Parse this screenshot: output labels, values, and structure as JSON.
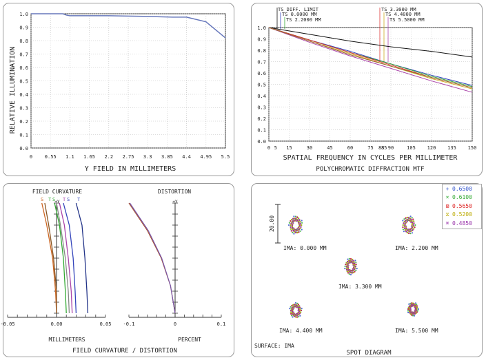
{
  "relative_illumination": {
    "xlabel": "Y FIELD IN MILLIMETERS",
    "ylabel": "RELATIVE ILLUMINATION"
  },
  "mtf": {
    "xlabel": "SPATIAL FREQUENCY IN CYCLES PER MILLIMETER",
    "caption": "POLYCHROMATIC DIFFRACTION MTF",
    "labels_left": [
      "TS DIFF. LIMIT",
      "TS 0.0000 MM",
      "TS 2.2000 MM"
    ],
    "labels_right": [
      "TS 3.3000 MM",
      "TS 4.4000 MM",
      "TS 5.5000 MM"
    ]
  },
  "field_curvature": {
    "title_left": "FIELD CURVATURE",
    "title_right": "DISTORTION",
    "caption": "FIELD CURVATURE / DISTORTION",
    "xlabel_left": "MILLIMETERS",
    "xlabel_right": "PERCENT",
    "axis_top_label": "+Y",
    "st_labels": [
      "S",
      "T",
      "S",
      "T",
      "S",
      "T"
    ]
  },
  "spot": {
    "caption": "SPOT DIAGRAM",
    "scale_label": "20.00",
    "surface": "SURFACE: IMA",
    "ima_labels": [
      "IMA: 0.000 MM",
      "IMA: 2.200 MM",
      "IMA: 3.300 MM",
      "IMA: 4.400 MM",
      "IMA: 5.500 MM"
    ],
    "legend": [
      {
        "symbol": "+",
        "value": "0.6500",
        "color": "#3355cc"
      },
      {
        "symbol": "×",
        "value": "0.6100",
        "color": "#33aa33"
      },
      {
        "symbol": "⊠",
        "value": "0.5650",
        "color": "#dd2222"
      },
      {
        "symbol": "⧖",
        "value": "0.5200",
        "color": "#bbaa00"
      },
      {
        "symbol": "⌘",
        "value": "0.4850",
        "color": "#9933aa"
      }
    ]
  },
  "chart_data": [
    {
      "type": "line",
      "xticks": [
        "0",
        "0.55",
        "1.1",
        "1.65",
        "2.2",
        "2.75",
        "3.3",
        "3.85",
        "4.4",
        "4.95",
        "5.5"
      ],
      "yticks": [
        "0.0",
        "0.1",
        "0.2",
        "0.3",
        "0.4",
        "0.5",
        "0.6",
        "0.7",
        "0.8",
        "0.9",
        "1.0"
      ],
      "xlim": [
        0,
        5.5
      ],
      "ylim": [
        0,
        1.0
      ],
      "grid": true,
      "series": [
        {
          "color": "#6677bb",
          "x": [
            0,
            0.9,
            1.0,
            1.1,
            2.2,
            3.3,
            4.0,
            4.4,
            4.95,
            5.5
          ],
          "y": [
            1.0,
            1.0,
            0.99,
            0.985,
            0.985,
            0.98,
            0.975,
            0.975,
            0.94,
            0.82
          ]
        }
      ]
    },
    {
      "type": "line",
      "xticks": [
        "0",
        "15",
        "30",
        "45",
        "60",
        "75",
        "90",
        "105",
        "120",
        "135",
        "150"
      ],
      "extra_xticks": [
        "5",
        "83",
        "85"
      ],
      "yticks": [
        "0.0",
        "0.1",
        "0.2",
        "0.3",
        "0.4",
        "0.5",
        "0.6",
        "0.7",
        "0.8",
        "0.9",
        "1.0"
      ],
      "xlim": [
        0,
        150
      ],
      "ylim": [
        0,
        1.0
      ],
      "grid": true,
      "series": [
        {
          "color": "#111111",
          "x": [
            0,
            30,
            60,
            90,
            120,
            150
          ],
          "y": [
            1.0,
            0.94,
            0.88,
            0.83,
            0.79,
            0.74
          ]
        },
        {
          "color": "#3344bb",
          "x": [
            0,
            30,
            60,
            90,
            120,
            150
          ],
          "y": [
            1.0,
            0.89,
            0.79,
            0.68,
            0.58,
            0.49
          ]
        },
        {
          "color": "#33aa33",
          "x": [
            0,
            30,
            60,
            90,
            120,
            150
          ],
          "y": [
            1.0,
            0.89,
            0.78,
            0.68,
            0.57,
            0.48
          ]
        },
        {
          "color": "#dd3333",
          "x": [
            0,
            30,
            60,
            90,
            120,
            150
          ],
          "y": [
            1.0,
            0.89,
            0.78,
            0.67,
            0.56,
            0.47
          ]
        },
        {
          "color": "#ccaa22",
          "x": [
            0,
            30,
            60,
            90,
            120,
            150
          ],
          "y": [
            1.0,
            0.88,
            0.77,
            0.66,
            0.55,
            0.46
          ]
        },
        {
          "color": "#aa44aa",
          "x": [
            0,
            30,
            60,
            90,
            120,
            150
          ],
          "y": [
            1.0,
            0.87,
            0.75,
            0.64,
            0.53,
            0.43
          ]
        },
        {
          "color": "#996633",
          "x": [
            0,
            30,
            60,
            90,
            120,
            150
          ],
          "y": [
            1.0,
            0.88,
            0.76,
            0.66,
            0.56,
            0.47
          ]
        }
      ]
    },
    {
      "type": "line",
      "xticks": [
        "-0.05",
        "0.00",
        "0.05"
      ],
      "xlim": [
        -0.05,
        0.05
      ],
      "ylim": [
        0,
        1.0
      ],
      "series": [
        {
          "color": "#cc6622",
          "x": [
            -0.015,
            -0.01,
            -0.004,
            -0.001,
            0.0
          ],
          "y": [
            1.0,
            0.8,
            0.5,
            0.2,
            0.0
          ]
        },
        {
          "color": "#885522",
          "x": [
            -0.012,
            -0.008,
            -0.003,
            0.0,
            0.0
          ],
          "y": [
            1.0,
            0.8,
            0.5,
            0.2,
            0.0
          ]
        },
        {
          "color": "#33aa33",
          "x": [
            -0.002,
            0.003,
            0.007,
            0.009,
            0.01
          ],
          "y": [
            1.0,
            0.8,
            0.5,
            0.2,
            0.0
          ]
        },
        {
          "color": "#aa44aa",
          "x": [
            0.003,
            0.008,
            0.012,
            0.015,
            0.016
          ],
          "y": [
            1.0,
            0.8,
            0.5,
            0.2,
            0.0
          ]
        },
        {
          "color": "#888888",
          "x": [
            0.0,
            0.004,
            0.009,
            0.012,
            0.013
          ],
          "y": [
            1.0,
            0.8,
            0.5,
            0.2,
            0.0
          ]
        },
        {
          "color": "#3344bb",
          "x": [
            0.007,
            0.013,
            0.017,
            0.019,
            0.02
          ],
          "y": [
            1.0,
            0.8,
            0.5,
            0.2,
            0.0
          ]
        },
        {
          "color": "#223388",
          "x": [
            0.02,
            0.026,
            0.029,
            0.031,
            0.032
          ],
          "y": [
            1.0,
            0.8,
            0.5,
            0.2,
            0.0
          ]
        }
      ]
    },
    {
      "type": "line",
      "xticks": [
        "-0.1",
        "0",
        "0.1"
      ],
      "xlim": [
        -0.1,
        0.1
      ],
      "ylim": [
        0,
        1.0
      ],
      "series": [
        {
          "color": "#aa5533",
          "x": [
            -0.1,
            -0.06,
            -0.03,
            -0.01,
            0.0
          ],
          "y": [
            1.0,
            0.75,
            0.5,
            0.25,
            0.0
          ]
        },
        {
          "color": "#7755aa",
          "x": [
            -0.098,
            -0.058,
            -0.029,
            -0.01,
            0.0
          ],
          "y": [
            1.0,
            0.75,
            0.5,
            0.25,
            0.0
          ]
        }
      ]
    },
    {
      "type": "scatter",
      "wavelengths": [
        "0.6500",
        "0.6100",
        "0.5650",
        "0.5200",
        "0.4850"
      ]
    }
  ]
}
